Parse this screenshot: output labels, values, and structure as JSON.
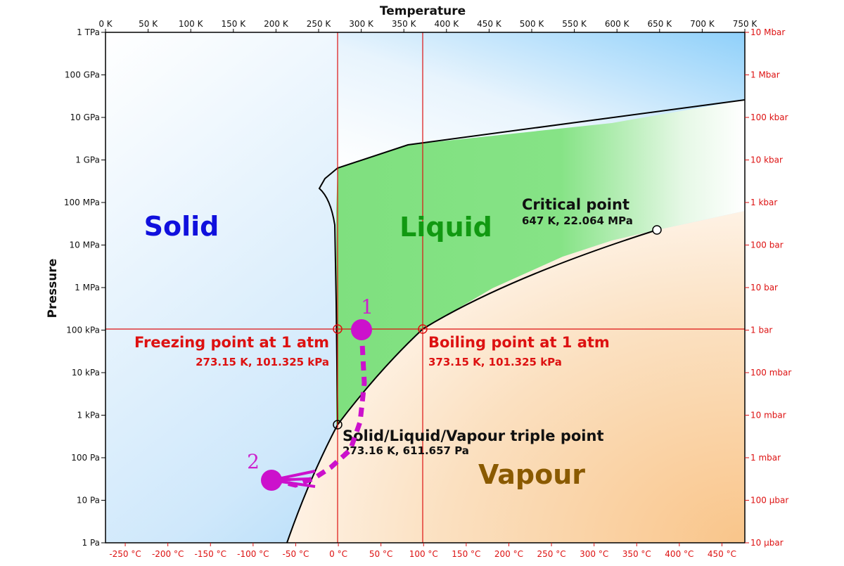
{
  "axes": {
    "top_title": "Temperature",
    "left_title": "Pressure",
    "kelvin_ticks": [
      "0 K",
      "50 K",
      "100 K",
      "150 K",
      "200 K",
      "250 K",
      "300 K",
      "350 K",
      "400 K",
      "450 K",
      "500 K",
      "550 K",
      "600 K",
      "650 K",
      "700 K",
      "750 K"
    ],
    "celsius_ticks": [
      "-250 °C",
      "-200 °C",
      "-150 °C",
      "-100 °C",
      "-50 °C",
      "0 °C",
      "50 °C",
      "100 °C",
      "150 °C",
      "200 °C",
      "250 °C",
      "300 °C",
      "350 °C",
      "400 °C",
      "450 °C"
    ],
    "pascal_ticks": [
      "1 TPa",
      "100 GPa",
      "10 GPa",
      "1 GPa",
      "100 MPa",
      "10 MPa",
      "1 MPa",
      "100 kPa",
      "10 kPa",
      "1 kPa",
      "100 Pa",
      "10 Pa",
      "1 Pa"
    ],
    "bar_ticks": [
      "10 Mbar",
      "1 Mbar",
      "100 kbar",
      "10 kbar",
      "1 kbar",
      "100 bar",
      "10 bar",
      "1 bar",
      "100 mbar",
      "10 mbar",
      "1 mbar",
      "100 µbar",
      "10 µbar"
    ],
    "temperature_range_K": [
      0,
      750
    ],
    "pressure_range_Pa_log10": [
      0,
      12
    ]
  },
  "regions": {
    "solid": "Solid",
    "liquid": "Liquid",
    "vapour": "Vapour"
  },
  "annotations": {
    "critical_title": "Critical point",
    "critical_values": "647 K, 22.064 MPa",
    "freezing_title": "Freezing point at 1 atm",
    "freezing_values": "273.15 K, 101.325 kPa",
    "boiling_title": "Boiling point at 1 atm",
    "boiling_values": "373.15 K, 101.325 kPa",
    "triple_title": "Solid/Liquid/Vapour triple point",
    "triple_values": "273.16 K, 611.657 Pa"
  },
  "markers": {
    "point1": "1",
    "point2": "2"
  },
  "colors": {
    "solid_label": "#1010dd",
    "liquid_label": "#119911",
    "vapour_label": "#8a5a00",
    "red_label": "#dd1111",
    "marker": "#cc11cc",
    "liquid_fill": "#80e080",
    "vapour_fill": "#f9c88e",
    "solid_fill": "#9fd3f7"
  }
}
